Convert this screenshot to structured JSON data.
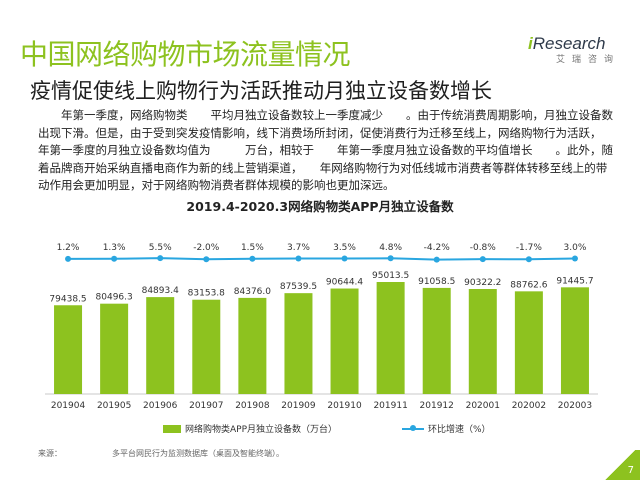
{
  "header": {
    "title": "中国网络购物市场流量情况",
    "subtitle": "疫情促使线上购物行为活跃推动月独立设备数增长"
  },
  "logo": {
    "brand_i": "i",
    "brand_rest": "Research",
    "tagline": "艾瑞咨询"
  },
  "body_text": "年第一季度，网络购物类　　平均月独立设备数较上一季度减少　　。由于传统消费周期影响，月独立设备数出现下滑。但是，由于受到突发疫情影响，线下消费场所封闭，促使消费行为迁移至线上，网络购物行为活跃，　　年第一季度的月独立设备数均值为　　　万台，相较于　　年第一季度月独立设备数的平均值增长　　。此外，随着品牌商开始采纳直播电商作为新的线上营销渠道，　　年网络购物行为对低线城市消费者等群体转移至线上的带动作用会更加明显，对于网络购物消费者群体规模的影响也更加深远。",
  "chart_data": {
    "type": "bar",
    "title": "2019.4-2020.3网络购物类APP月独立设备数",
    "categories": [
      "201904",
      "201905",
      "201906",
      "201907",
      "201908",
      "201909",
      "201910",
      "201911",
      "201912",
      "202001",
      "202002",
      "202003"
    ],
    "series": [
      {
        "name": "网络购物类APP月独立设备数（万台）",
        "type": "bar",
        "values": [
          79438.5,
          80496.3,
          84893.4,
          83153.8,
          84376.0,
          87539.5,
          90644.4,
          95013.5,
          91058.5,
          90322.2,
          88762.6,
          91445.7
        ],
        "labels": [
          "79438.5",
          "80496.3",
          "84893.4",
          "83153.8",
          "84376.0",
          "87539.5",
          "90644.4",
          "95013.5",
          "91058.5",
          "90322.2",
          "88762.6",
          "91445.7"
        ]
      },
      {
        "name": "环比增速（%）",
        "type": "line",
        "values": [
          1.2,
          1.3,
          5.5,
          -2.0,
          1.5,
          3.7,
          3.5,
          4.8,
          -4.2,
          -0.8,
          -1.7,
          3.0
        ],
        "labels": [
          "1.2%",
          "1.3%",
          "5.5%",
          "-2.0%",
          "1.5%",
          "3.7%",
          "3.5%",
          "4.8%",
          "-4.2%",
          "-0.8%",
          "-1.7%",
          "3.0%"
        ]
      }
    ],
    "colors": {
      "bar": "#8dc21f",
      "line": "#29a6e0"
    },
    "legend_position": "bottom",
    "grid": false
  },
  "footer": {
    "source_label": "来源：",
    "source_text": "多平台网民行为监测数据库（桌面及智能终端）。"
  },
  "page_number": "7"
}
